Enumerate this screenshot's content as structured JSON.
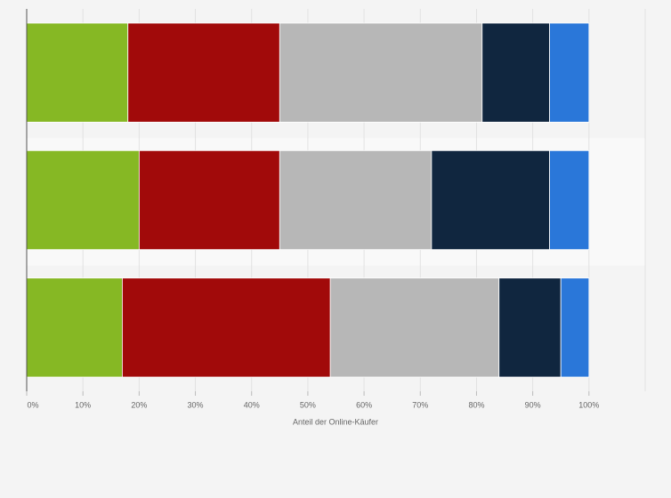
{
  "chart_data": {
    "type": "stacked-bar-horizontal",
    "x_label": "Anteil der Online-Käufer",
    "categories": [
      null,
      null,
      null
    ],
    "series": [
      {
        "color": "#86b824",
        "values": [
          18,
          20,
          17
        ]
      },
      {
        "color": "#a10a0a",
        "values": [
          27,
          25,
          37
        ]
      },
      {
        "color": "#b7b7b7",
        "values": [
          36,
          27,
          30
        ]
      },
      {
        "color": "#10263f",
        "values": [
          12,
          21,
          11
        ]
      },
      {
        "color": "#2a77d9",
        "values": [
          7,
          7,
          5
        ]
      }
    ],
    "xlim": [
      0,
      110
    ],
    "xticks": [
      {
        "value": 0,
        "label": "0%"
      },
      {
        "value": 10,
        "label": "10%"
      },
      {
        "value": 20,
        "label": "20%"
      },
      {
        "value": 30,
        "label": "30%"
      },
      {
        "value": 40,
        "label": "40%"
      },
      {
        "value": 50,
        "label": "50%"
      },
      {
        "value": 60,
        "label": "60%"
      },
      {
        "value": 70,
        "label": "70%"
      },
      {
        "value": 80,
        "label": "80%"
      },
      {
        "value": 90,
        "label": "90%"
      },
      {
        "value": 100,
        "label": "100%"
      }
    ],
    "grid": true
  }
}
